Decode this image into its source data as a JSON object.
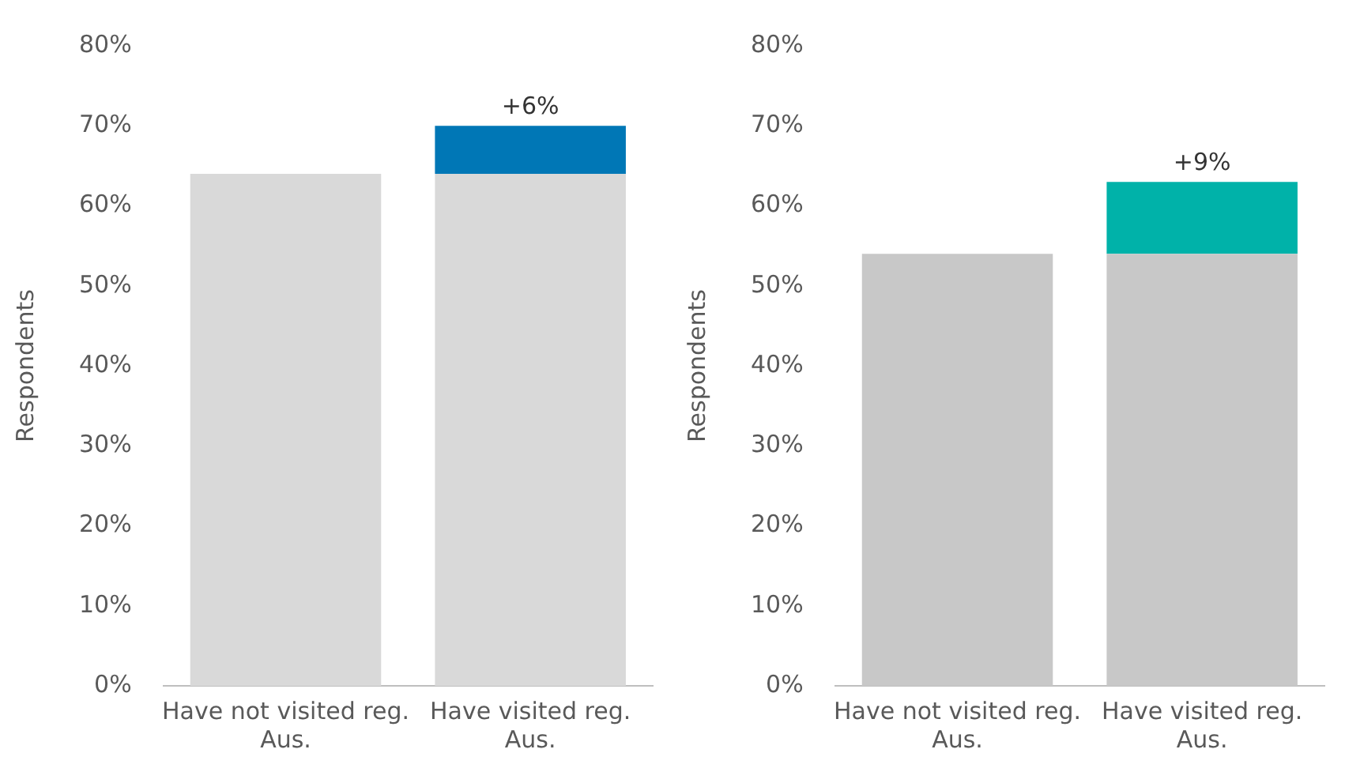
{
  "chart_data": [
    {
      "type": "bar",
      "stacked": true,
      "ylabel": "Respondents",
      "categories": [
        "Have not visited reg. Aus.",
        "Have visited reg. Aus."
      ],
      "series": [
        {
          "color": "#d9d9d9",
          "values": [
            64,
            64
          ]
        },
        {
          "color": "#0077b6",
          "values": [
            null,
            6
          ],
          "value_labels": [
            null,
            "+6%"
          ]
        }
      ],
      "ylim": [
        0,
        80
      ],
      "yticks": [
        {
          "value": 0,
          "label": "0%"
        },
        {
          "value": 10,
          "label": "10%"
        },
        {
          "value": 20,
          "label": "20%"
        },
        {
          "value": 30,
          "label": "30%"
        },
        {
          "value": 40,
          "label": "40%"
        },
        {
          "value": 50,
          "label": "50%"
        },
        {
          "value": 60,
          "label": "60%"
        },
        {
          "value": 70,
          "label": "70%"
        },
        {
          "value": 80,
          "label": "80%"
        }
      ],
      "grid": false,
      "legend": false
    },
    {
      "type": "bar",
      "stacked": true,
      "ylabel": "Respondents",
      "categories": [
        "Have not visited reg. Aus.",
        "Have visited reg. Aus."
      ],
      "series": [
        {
          "color": "#c8c8c8",
          "values": [
            54,
            54
          ]
        },
        {
          "color": "#00b2a9",
          "values": [
            null,
            9
          ],
          "value_labels": [
            null,
            "+9%"
          ]
        }
      ],
      "ylim": [
        0,
        80
      ],
      "yticks": [
        {
          "value": 0,
          "label": "0%"
        },
        {
          "value": 10,
          "label": "10%"
        },
        {
          "value": 20,
          "label": "20%"
        },
        {
          "value": 30,
          "label": "30%"
        },
        {
          "value": 40,
          "label": "40%"
        },
        {
          "value": 50,
          "label": "50%"
        },
        {
          "value": 60,
          "label": "60%"
        },
        {
          "value": 70,
          "label": "70%"
        },
        {
          "value": 80,
          "label": "80%"
        }
      ],
      "grid": false,
      "legend": false
    }
  ]
}
